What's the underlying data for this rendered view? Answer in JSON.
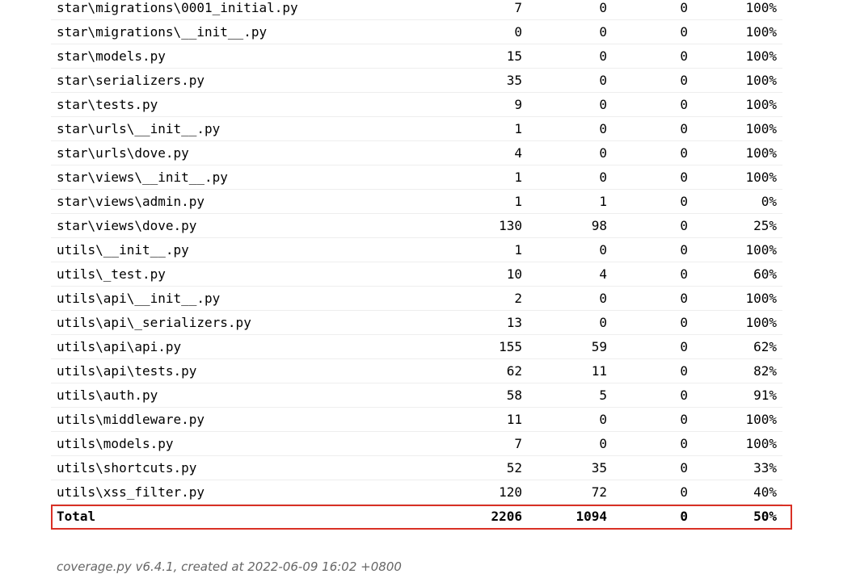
{
  "report": {
    "rows": [
      {
        "name": "star\\migrations\\0001_initial.py",
        "statements": "7",
        "missing": "0",
        "excluded": "0",
        "coverage": "100%"
      },
      {
        "name": "star\\migrations\\__init__.py",
        "statements": "0",
        "missing": "0",
        "excluded": "0",
        "coverage": "100%"
      },
      {
        "name": "star\\models.py",
        "statements": "15",
        "missing": "0",
        "excluded": "0",
        "coverage": "100%"
      },
      {
        "name": "star\\serializers.py",
        "statements": "35",
        "missing": "0",
        "excluded": "0",
        "coverage": "100%"
      },
      {
        "name": "star\\tests.py",
        "statements": "9",
        "missing": "0",
        "excluded": "0",
        "coverage": "100%"
      },
      {
        "name": "star\\urls\\__init__.py",
        "statements": "1",
        "missing": "0",
        "excluded": "0",
        "coverage": "100%"
      },
      {
        "name": "star\\urls\\dove.py",
        "statements": "4",
        "missing": "0",
        "excluded": "0",
        "coverage": "100%"
      },
      {
        "name": "star\\views\\__init__.py",
        "statements": "1",
        "missing": "0",
        "excluded": "0",
        "coverage": "100%"
      },
      {
        "name": "star\\views\\admin.py",
        "statements": "1",
        "missing": "1",
        "excluded": "0",
        "coverage": "0%"
      },
      {
        "name": "star\\views\\dove.py",
        "statements": "130",
        "missing": "98",
        "excluded": "0",
        "coverage": "25%"
      },
      {
        "name": "utils\\__init__.py",
        "statements": "1",
        "missing": "0",
        "excluded": "0",
        "coverage": "100%"
      },
      {
        "name": "utils\\_test.py",
        "statements": "10",
        "missing": "4",
        "excluded": "0",
        "coverage": "60%"
      },
      {
        "name": "utils\\api\\__init__.py",
        "statements": "2",
        "missing": "0",
        "excluded": "0",
        "coverage": "100%"
      },
      {
        "name": "utils\\api\\_serializers.py",
        "statements": "13",
        "missing": "0",
        "excluded": "0",
        "coverage": "100%"
      },
      {
        "name": "utils\\api\\api.py",
        "statements": "155",
        "missing": "59",
        "excluded": "0",
        "coverage": "62%"
      },
      {
        "name": "utils\\api\\tests.py",
        "statements": "62",
        "missing": "11",
        "excluded": "0",
        "coverage": "82%"
      },
      {
        "name": "utils\\auth.py",
        "statements": "58",
        "missing": "5",
        "excluded": "0",
        "coverage": "91%"
      },
      {
        "name": "utils\\middleware.py",
        "statements": "11",
        "missing": "0",
        "excluded": "0",
        "coverage": "100%"
      },
      {
        "name": "utils\\models.py",
        "statements": "7",
        "missing": "0",
        "excluded": "0",
        "coverage": "100%"
      },
      {
        "name": "utils\\shortcuts.py",
        "statements": "52",
        "missing": "35",
        "excluded": "0",
        "coverage": "33%"
      },
      {
        "name": "utils\\xss_filter.py",
        "statements": "120",
        "missing": "72",
        "excluded": "0",
        "coverage": "40%"
      }
    ],
    "total": {
      "name": "Total",
      "statements": "2206",
      "missing": "1094",
      "excluded": "0",
      "coverage": "50%"
    }
  },
  "footer": {
    "text": "coverage.py v6.4.1, created at 2022-06-09 16:02 +0800"
  },
  "colors": {
    "highlight_border": "#d93025",
    "row_divider": "#eeeeee",
    "footer_text": "#666666"
  }
}
